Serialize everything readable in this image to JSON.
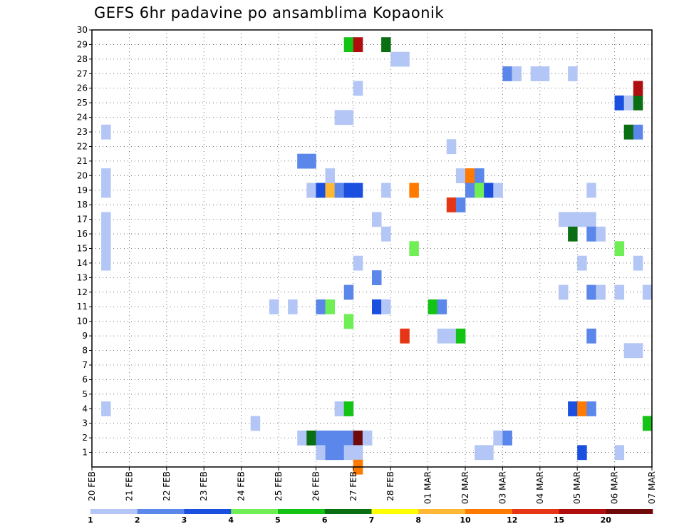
{
  "title": "GEFS 6hr padavine po ansamblima Kopaonik",
  "chart_data": {
    "type": "heatmap",
    "title": "GEFS 6hr padavine po ansamblima Kopaonik",
    "xlabel": "",
    "ylabel": "",
    "y_ticks": [
      1,
      2,
      3,
      4,
      5,
      6,
      7,
      8,
      9,
      10,
      11,
      12,
      13,
      14,
      15,
      16,
      17,
      18,
      19,
      20,
      21,
      22,
      23,
      24,
      25,
      26,
      27,
      28,
      29,
      30
    ],
    "ylim": [
      0,
      30
    ],
    "x_ticks": [
      "20 FEB",
      "21 FEB",
      "22 FEB",
      "23 FEB",
      "24 FEB",
      "25 FEB",
      "26 FEB",
      "27 FEB",
      "28 FEB",
      "01 MAR",
      "02 MAR",
      "03 MAR",
      "04 MAR",
      "05 MAR",
      "06 MAR",
      "07 MAR"
    ],
    "x_unit": "6-hour steps from 20 FEB 00Z",
    "xlim": [
      0,
      60
    ],
    "grid": true,
    "colorbar": {
      "labels": [
        "1",
        "2",
        "3",
        "4",
        "5",
        "6",
        "7",
        "8",
        "10",
        "12",
        "15",
        "20"
      ],
      "colors": [
        "#b3c6f5",
        "#5b86ea",
        "#1a4fe0",
        "#6fef55",
        "#14c414",
        "#0a6e12",
        "#ffff00",
        "#ffb833",
        "#ff7a00",
        "#e53515",
        "#b00e0e",
        "#6e0a0a"
      ]
    },
    "cells": [
      {
        "x": 1,
        "y": 23,
        "v": 1
      },
      {
        "x": 1,
        "y": 20,
        "v": 1
      },
      {
        "x": 1,
        "y": 19,
        "v": 1
      },
      {
        "x": 1,
        "y": 17,
        "v": 1
      },
      {
        "x": 1,
        "y": 16,
        "v": 1
      },
      {
        "x": 1,
        "y": 15,
        "v": 1
      },
      {
        "x": 1,
        "y": 14,
        "v": 1
      },
      {
        "x": 1,
        "y": 4,
        "v": 1
      },
      {
        "x": 17,
        "y": 3,
        "v": 1
      },
      {
        "x": 19,
        "y": 11,
        "v": 1
      },
      {
        "x": 21,
        "y": 11,
        "v": 1
      },
      {
        "x": 22,
        "y": 21,
        "v": 2
      },
      {
        "x": 23,
        "y": 21,
        "v": 2
      },
      {
        "x": 22,
        "y": 2,
        "v": 1
      },
      {
        "x": 23,
        "y": 2,
        "v": 6
      },
      {
        "x": 23,
        "y": 19,
        "v": 1
      },
      {
        "x": 24,
        "y": 19,
        "v": 3
      },
      {
        "x": 25,
        "y": 19,
        "v": 8
      },
      {
        "x": 25,
        "y": 20,
        "v": 1
      },
      {
        "x": 26,
        "y": 19,
        "v": 2
      },
      {
        "x": 27,
        "y": 19,
        "v": 3
      },
      {
        "x": 28,
        "y": 19,
        "v": 3
      },
      {
        "x": 24,
        "y": 11,
        "v": 2
      },
      {
        "x": 25,
        "y": 11,
        "v": 4
      },
      {
        "x": 24,
        "y": 2,
        "v": 2
      },
      {
        "x": 25,
        "y": 2,
        "v": 2
      },
      {
        "x": 26,
        "y": 2,
        "v": 2
      },
      {
        "x": 27,
        "y": 2,
        "v": 2
      },
      {
        "x": 28,
        "y": 2,
        "v": 20
      },
      {
        "x": 29,
        "y": 2,
        "v": 1
      },
      {
        "x": 24,
        "y": 1,
        "v": 1
      },
      {
        "x": 25,
        "y": 1,
        "v": 2
      },
      {
        "x": 26,
        "y": 1,
        "v": 2
      },
      {
        "x": 27,
        "y": 1,
        "v": 1
      },
      {
        "x": 28,
        "y": 1,
        "v": 1
      },
      {
        "x": 28,
        "y": 0,
        "v": 10
      },
      {
        "x": 26,
        "y": 24,
        "v": 1
      },
      {
        "x": 27,
        "y": 24,
        "v": 1
      },
      {
        "x": 27,
        "y": 29,
        "v": 5
      },
      {
        "x": 28,
        "y": 29,
        "v": 15
      },
      {
        "x": 31,
        "y": 29,
        "v": 6
      },
      {
        "x": 28,
        "y": 26,
        "v": 1
      },
      {
        "x": 27,
        "y": 12,
        "v": 2
      },
      {
        "x": 27,
        "y": 10,
        "v": 4
      },
      {
        "x": 26,
        "y": 4,
        "v": 1
      },
      {
        "x": 27,
        "y": 4,
        "v": 5
      },
      {
        "x": 28,
        "y": 14,
        "v": 1
      },
      {
        "x": 30,
        "y": 17,
        "v": 1
      },
      {
        "x": 30,
        "y": 13,
        "v": 2
      },
      {
        "x": 30,
        "y": 11,
        "v": 3
      },
      {
        "x": 31,
        "y": 19,
        "v": 1
      },
      {
        "x": 31,
        "y": 16,
        "v": 1
      },
      {
        "x": 31,
        "y": 11,
        "v": 1
      },
      {
        "x": 32,
        "y": 28,
        "v": 1
      },
      {
        "x": 33,
        "y": 28,
        "v": 1
      },
      {
        "x": 34,
        "y": 19,
        "v": 10
      },
      {
        "x": 34,
        "y": 15,
        "v": 4
      },
      {
        "x": 33,
        "y": 9,
        "v": 12
      },
      {
        "x": 36,
        "y": 11,
        "v": 5
      },
      {
        "x": 37,
        "y": 11,
        "v": 2
      },
      {
        "x": 37,
        "y": 9,
        "v": 1
      },
      {
        "x": 38,
        "y": 9,
        "v": 1
      },
      {
        "x": 39,
        "y": 9,
        "v": 5
      },
      {
        "x": 38,
        "y": 22,
        "v": 1
      },
      {
        "x": 38,
        "y": 18,
        "v": 12
      },
      {
        "x": 39,
        "y": 18,
        "v": 2
      },
      {
        "x": 39,
        "y": 20,
        "v": 1
      },
      {
        "x": 40,
        "y": 20,
        "v": 10
      },
      {
        "x": 41,
        "y": 20,
        "v": 2
      },
      {
        "x": 40,
        "y": 19,
        "v": 2
      },
      {
        "x": 41,
        "y": 19,
        "v": 4
      },
      {
        "x": 42,
        "y": 19,
        "v": 3
      },
      {
        "x": 43,
        "y": 19,
        "v": 1
      },
      {
        "x": 41,
        "y": 1,
        "v": 1
      },
      {
        "x": 42,
        "y": 1,
        "v": 1
      },
      {
        "x": 43,
        "y": 2,
        "v": 1
      },
      {
        "x": 44,
        "y": 2,
        "v": 2
      },
      {
        "x": 44,
        "y": 27,
        "v": 2
      },
      {
        "x": 45,
        "y": 27,
        "v": 1
      },
      {
        "x": 47,
        "y": 27,
        "v": 1
      },
      {
        "x": 48,
        "y": 27,
        "v": 1
      },
      {
        "x": 51,
        "y": 27,
        "v": 1
      },
      {
        "x": 50,
        "y": 17,
        "v": 1
      },
      {
        "x": 51,
        "y": 17,
        "v": 1
      },
      {
        "x": 52,
        "y": 17,
        "v": 1
      },
      {
        "x": 53,
        "y": 17,
        "v": 1
      },
      {
        "x": 51,
        "y": 16,
        "v": 6
      },
      {
        "x": 53,
        "y": 16,
        "v": 2
      },
      {
        "x": 54,
        "y": 16,
        "v": 1
      },
      {
        "x": 52,
        "y": 14,
        "v": 1
      },
      {
        "x": 53,
        "y": 19,
        "v": 1
      },
      {
        "x": 50,
        "y": 12,
        "v": 1
      },
      {
        "x": 53,
        "y": 12,
        "v": 2
      },
      {
        "x": 54,
        "y": 12,
        "v": 1
      },
      {
        "x": 53,
        "y": 9,
        "v": 2
      },
      {
        "x": 51,
        "y": 4,
        "v": 3
      },
      {
        "x": 52,
        "y": 4,
        "v": 10
      },
      {
        "x": 53,
        "y": 4,
        "v": 2
      },
      {
        "x": 52,
        "y": 1,
        "v": 3
      },
      {
        "x": 56,
        "y": 25,
        "v": 3
      },
      {
        "x": 57,
        "y": 25,
        "v": 1
      },
      {
        "x": 58,
        "y": 25,
        "v": 6
      },
      {
        "x": 58,
        "y": 26,
        "v": 15
      },
      {
        "x": 57,
        "y": 23,
        "v": 6
      },
      {
        "x": 58,
        "y": 23,
        "v": 2
      },
      {
        "x": 56,
        "y": 15,
        "v": 4
      },
      {
        "x": 56,
        "y": 12,
        "v": 1
      },
      {
        "x": 59,
        "y": 12,
        "v": 1
      },
      {
        "x": 58,
        "y": 14,
        "v": 1
      },
      {
        "x": 57,
        "y": 8,
        "v": 1
      },
      {
        "x": 58,
        "y": 8,
        "v": 1
      },
      {
        "x": 59,
        "y": 3,
        "v": 5
      },
      {
        "x": 56,
        "y": 1,
        "v": 1
      }
    ]
  }
}
